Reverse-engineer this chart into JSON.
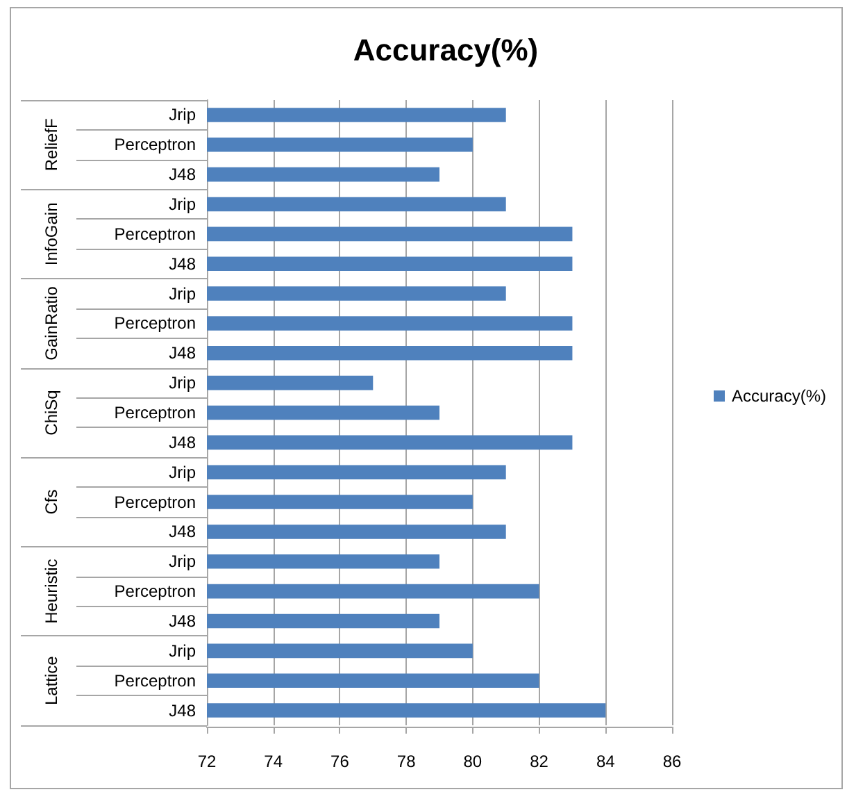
{
  "chart_data": {
    "type": "bar",
    "orientation": "horizontal",
    "title": "Accuracy(%)",
    "categories": [
      "Jrip",
      "Perceptron",
      "J48",
      "Jrip",
      "Perceptron",
      "J48",
      "Jrip",
      "Perceptron",
      "J48",
      "Jrip",
      "Perceptron",
      "J48",
      "Jrip",
      "Perceptron",
      "J48",
      "Jrip",
      "Perceptron",
      "J48",
      "Jrip",
      "Perceptron",
      "J48"
    ],
    "annotations": [
      "ReliefF",
      "InfoGain",
      "GainRatio",
      "ChiSq",
      "Cfs",
      "Heuristic",
      "Lattice"
    ],
    "series": [
      {
        "name": "Accuracy(%)",
        "color": "#4f81bd",
        "values": [
          81,
          80,
          79,
          81,
          83,
          83,
          81,
          83,
          83,
          77,
          79,
          83,
          81,
          80,
          81,
          79,
          82,
          79,
          80,
          82,
          84
        ]
      }
    ],
    "xlim": [
      72,
      86
    ],
    "xticks": [
      72,
      74,
      76,
      78,
      80,
      82,
      84,
      86
    ],
    "grid": "x",
    "legend": "right"
  }
}
